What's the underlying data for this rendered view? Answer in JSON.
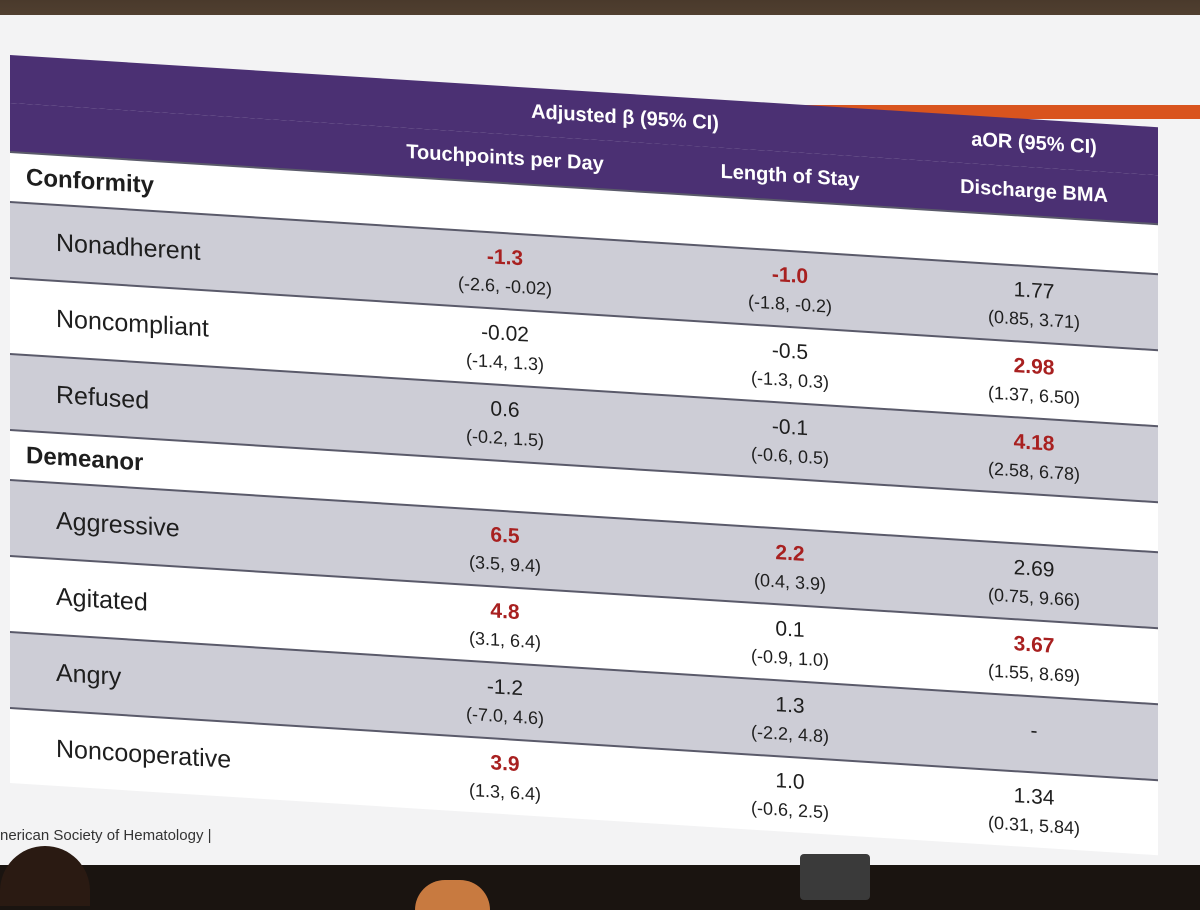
{
  "header": {
    "group_label_beta": "Adjusted β (95% CI)",
    "group_label_or": "aOR (95% CI)",
    "columns": [
      "Touchpoints per Day",
      "Length of Stay",
      "Discharge BMA"
    ]
  },
  "colors": {
    "header_bg": "#4b3073",
    "significant_text": "#a82020",
    "shaded_row": "#cdcdd6",
    "accent": "#d9541e"
  },
  "groups": [
    {
      "name": "Conformity",
      "rows": [
        {
          "label": "Nonadherent",
          "cells": [
            {
              "est": "-1.3",
              "ci": "(-2.6, -0.02)",
              "sig": true
            },
            {
              "est": "-1.0",
              "ci": "(-1.8, -0.2)",
              "sig": true
            },
            {
              "est": "1.77",
              "ci": "(0.85, 3.71)",
              "sig": false
            }
          ]
        },
        {
          "label": "Noncompliant",
          "cells": [
            {
              "est": "-0.02",
              "ci": "(-1.4, 1.3)",
              "sig": false
            },
            {
              "est": "-0.5",
              "ci": "(-1.3, 0.3)",
              "sig": false
            },
            {
              "est": "2.98",
              "ci": "(1.37, 6.50)",
              "sig": true
            }
          ]
        },
        {
          "label": "Refused",
          "cells": [
            {
              "est": "0.6",
              "ci": "(-0.2, 1.5)",
              "sig": false
            },
            {
              "est": "-0.1",
              "ci": "(-0.6, 0.5)",
              "sig": false
            },
            {
              "est": "4.18",
              "ci": "(2.58, 6.78)",
              "sig": true
            }
          ]
        }
      ]
    },
    {
      "name": "Demeanor",
      "rows": [
        {
          "label": "Aggressive",
          "cells": [
            {
              "est": "6.5",
              "ci": "(3.5, 9.4)",
              "sig": true
            },
            {
              "est": "2.2",
              "ci": "(0.4, 3.9)",
              "sig": true
            },
            {
              "est": "2.69",
              "ci": "(0.75, 9.66)",
              "sig": false
            }
          ]
        },
        {
          "label": "Agitated",
          "cells": [
            {
              "est": "4.8",
              "ci": "(3.1, 6.4)",
              "sig": true
            },
            {
              "est": "0.1",
              "ci": "(-0.9, 1.0)",
              "sig": false
            },
            {
              "est": "3.67",
              "ci": "(1.55, 8.69)",
              "sig": true
            }
          ]
        },
        {
          "label": "Angry",
          "cells": [
            {
              "est": "-1.2",
              "ci": "(-7.0, 4.6)",
              "sig": false
            },
            {
              "est": "1.3",
              "ci": "(-2.2, 4.8)",
              "sig": false
            },
            {
              "est": "-",
              "ci": "",
              "sig": false
            }
          ]
        },
        {
          "label": "Noncooperative",
          "cells": [
            {
              "est": "3.9",
              "ci": "(1.3, 6.4)",
              "sig": true
            },
            {
              "est": "1.0",
              "ci": "(-0.6, 2.5)",
              "sig": false
            },
            {
              "est": "1.34",
              "ci": "(0.31, 5.84)",
              "sig": false
            }
          ]
        }
      ]
    }
  ],
  "footer": "nerican Society of Hematology  |"
}
